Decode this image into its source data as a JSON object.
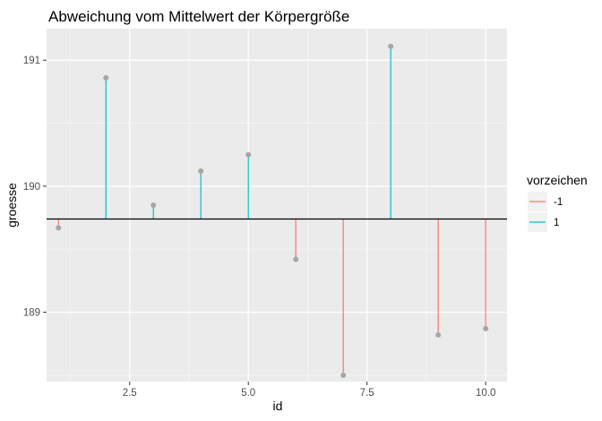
{
  "chart_data": {
    "type": "lollipop",
    "title": "Abweichung vom Mittelwert der Körpergröße",
    "xlabel": "id",
    "ylabel": "groesse",
    "xlim": [
      0.75,
      10.45
    ],
    "ylim": [
      188.45,
      191.25
    ],
    "x_ticks": [
      2.5,
      5.0,
      7.5,
      10.0
    ],
    "x_tick_labels": [
      "2.5",
      "5.0",
      "7.5",
      "10.0"
    ],
    "y_ticks": [
      189,
      190,
      191
    ],
    "y_tick_labels": [
      "189",
      "190",
      "191"
    ],
    "baseline": 189.74,
    "points": [
      {
        "id": 1,
        "groesse": 189.67,
        "vorzeichen": "-1"
      },
      {
        "id": 2,
        "groesse": 190.86,
        "vorzeichen": "1"
      },
      {
        "id": 3,
        "groesse": 189.85,
        "vorzeichen": "1"
      },
      {
        "id": 4,
        "groesse": 190.12,
        "vorzeichen": "1"
      },
      {
        "id": 5,
        "groesse": 190.25,
        "vorzeichen": "1"
      },
      {
        "id": 6,
        "groesse": 189.42,
        "vorzeichen": "-1"
      },
      {
        "id": 7,
        "groesse": 188.5,
        "vorzeichen": "-1"
      },
      {
        "id": 8,
        "groesse": 191.11,
        "vorzeichen": "1"
      },
      {
        "id": 9,
        "groesse": 188.82,
        "vorzeichen": "-1"
      },
      {
        "id": 10,
        "groesse": 188.87,
        "vorzeichen": "-1"
      }
    ],
    "legend": {
      "title": "vorzeichen",
      "position": "right",
      "entries": [
        {
          "label": "-1",
          "color": "#F8766D"
        },
        {
          "label": "1",
          "color": "#00BFC4"
        }
      ]
    },
    "colors": {
      "panel_bg": "#EBEBEB",
      "grid_major": "#FFFFFF",
      "point": "#A6A6A6",
      "baseline": "#000000"
    }
  }
}
